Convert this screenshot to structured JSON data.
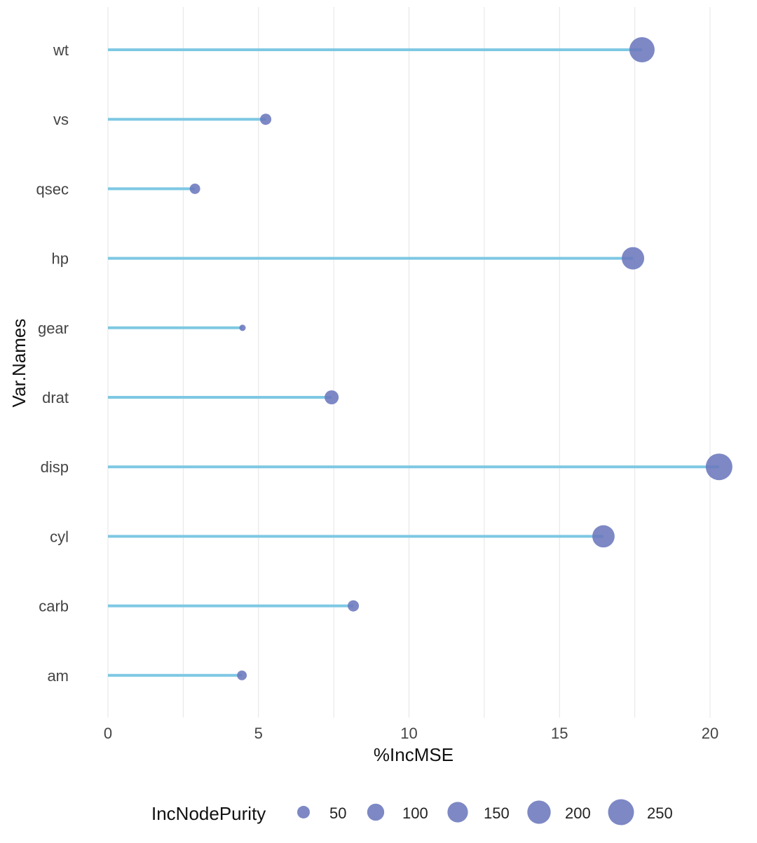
{
  "chart_data": {
    "type": "lollipop",
    "xlabel": "%IncMSE",
    "ylabel": "Var.Names",
    "xlim": [
      0,
      20.5
    ],
    "xticks": [
      0,
      5,
      10,
      15,
      20
    ],
    "grid": "vertical",
    "categories": [
      "wt",
      "vs",
      "qsec",
      "hp",
      "gear",
      "drat",
      "disp",
      "cyl",
      "carb",
      "am"
    ],
    "values": [
      17.74,
      5.24,
      2.89,
      17.44,
      4.47,
      7.43,
      20.3,
      16.46,
      8.15,
      4.45
    ],
    "size_values": [
      236,
      38,
      32,
      183,
      9,
      64,
      265,
      180,
      38,
      27
    ],
    "legend": {
      "title": "IncNodePurity",
      "position": "bottom",
      "entries": [
        50,
        100,
        150,
        200,
        250
      ]
    },
    "colors": {
      "stem": "#7ec8e3",
      "point": "#6b77bd",
      "grid": "#e4e4e4"
    }
  }
}
